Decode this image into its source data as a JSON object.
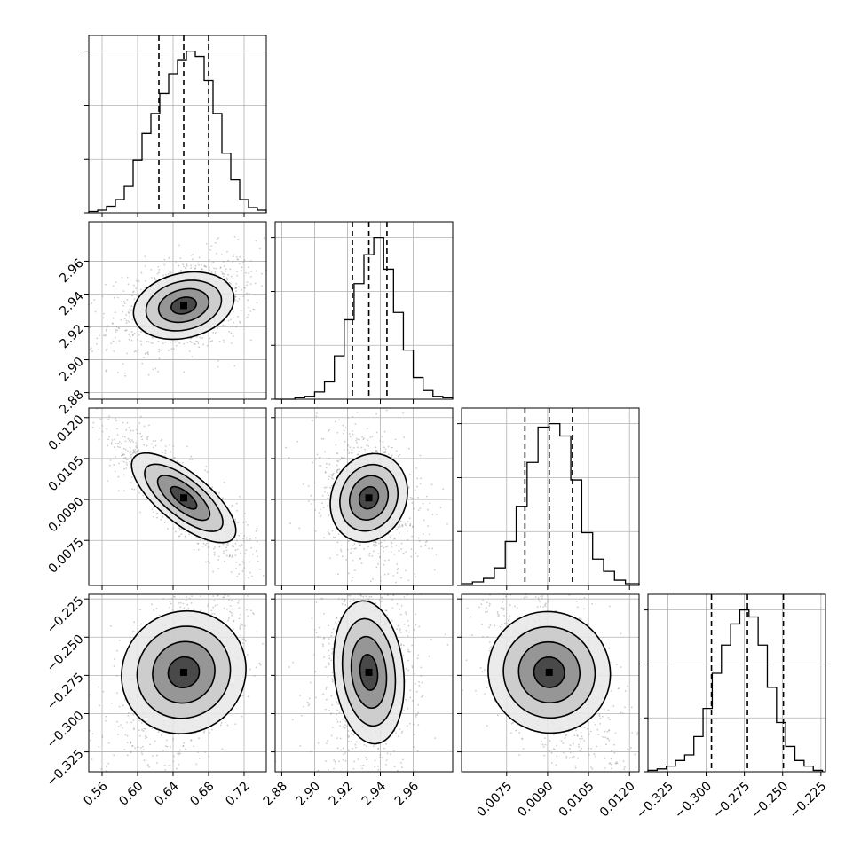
{
  "chart_data": {
    "type": "corner",
    "parameters": [
      {
        "range": [
          0.545,
          0.745
        ],
        "ticks": [
          0.56,
          0.6,
          0.64,
          0.68,
          0.72
        ],
        "tick_labels": [
          "0.56",
          "0.60",
          "0.64",
          "0.68",
          "0.72"
        ],
        "quantiles": [
          0.624,
          0.652,
          0.68
        ],
        "hist_bins": [
          0.545,
          0.555,
          0.565,
          0.575,
          0.585,
          0.595,
          0.605,
          0.615,
          0.625,
          0.635,
          0.645,
          0.655,
          0.665,
          0.675,
          0.685,
          0.695,
          0.705,
          0.715,
          0.725,
          0.735,
          0.745
        ],
        "hist_counts": [
          1,
          2,
          5,
          10,
          20,
          40,
          60,
          75,
          90,
          105,
          115,
          122,
          118,
          100,
          75,
          45,
          25,
          10,
          4,
          2
        ]
      },
      {
        "range": [
          2.876,
          2.984
        ],
        "ticks": [
          2.88,
          2.9,
          2.92,
          2.94,
          2.96
        ],
        "tick_labels": [
          "2.88",
          "2.90",
          "2.92",
          "2.94",
          "2.96"
        ],
        "quantiles": [
          2.923,
          2.933,
          2.944
        ],
        "hist_bins": [
          2.876,
          2.882,
          2.888,
          2.894,
          2.9,
          2.906,
          2.912,
          2.918,
          2.924,
          2.93,
          2.936,
          2.942,
          2.948,
          2.954,
          2.96,
          2.966,
          2.972,
          2.978,
          2.984
        ],
        "hist_counts": [
          0,
          0,
          1,
          2,
          5,
          12,
          30,
          55,
          80,
          100,
          112,
          90,
          60,
          34,
          15,
          6,
          2,
          1
        ]
      },
      {
        "range": [
          0.00585,
          0.01235
        ],
        "ticks": [
          0.0075,
          0.009,
          0.0105,
          0.012
        ],
        "tick_labels": [
          "0.0075",
          "0.0090",
          "0.0105",
          "0.0120"
        ],
        "y_tick_labels": [
          "0.0075",
          "0.0090",
          "0.0105",
          "0.0120"
        ],
        "quantiles": [
          0.00817,
          0.00906,
          0.00991
        ],
        "hist_bins": [
          0.00585,
          0.00625,
          0.00665,
          0.00705,
          0.00745,
          0.00785,
          0.00825,
          0.00865,
          0.00905,
          0.00945,
          0.00985,
          0.01025,
          0.01065,
          0.01105,
          0.01145,
          0.01185,
          0.01235
        ],
        "hist_counts": [
          1,
          2,
          4,
          10,
          25,
          45,
          70,
          90,
          92,
          85,
          60,
          30,
          15,
          8,
          3,
          1
        ]
      },
      {
        "range": [
          -0.338,
          -0.222
        ],
        "ticks": [
          -0.325,
          -0.3,
          -0.275,
          -0.25,
          -0.225
        ],
        "tick_labels": [
          "−0.325",
          "−0.300",
          "−0.275",
          "−0.250",
          "−0.225"
        ],
        "quantiles": [
          -0.2965,
          -0.273,
          -0.2495
        ],
        "hist_bins": [
          -0.338,
          -0.332,
          -0.326,
          -0.32,
          -0.314,
          -0.308,
          -0.302,
          -0.296,
          -0.29,
          -0.284,
          -0.278,
          -0.272,
          -0.266,
          -0.26,
          -0.254,
          -0.248,
          -0.242,
          -0.236,
          -0.23,
          -0.224
        ],
        "hist_counts": [
          1,
          2,
          4,
          8,
          12,
          25,
          45,
          70,
          90,
          105,
          115,
          110,
          90,
          60,
          35,
          18,
          8,
          4,
          1
        ]
      }
    ],
    "grid": true
  }
}
